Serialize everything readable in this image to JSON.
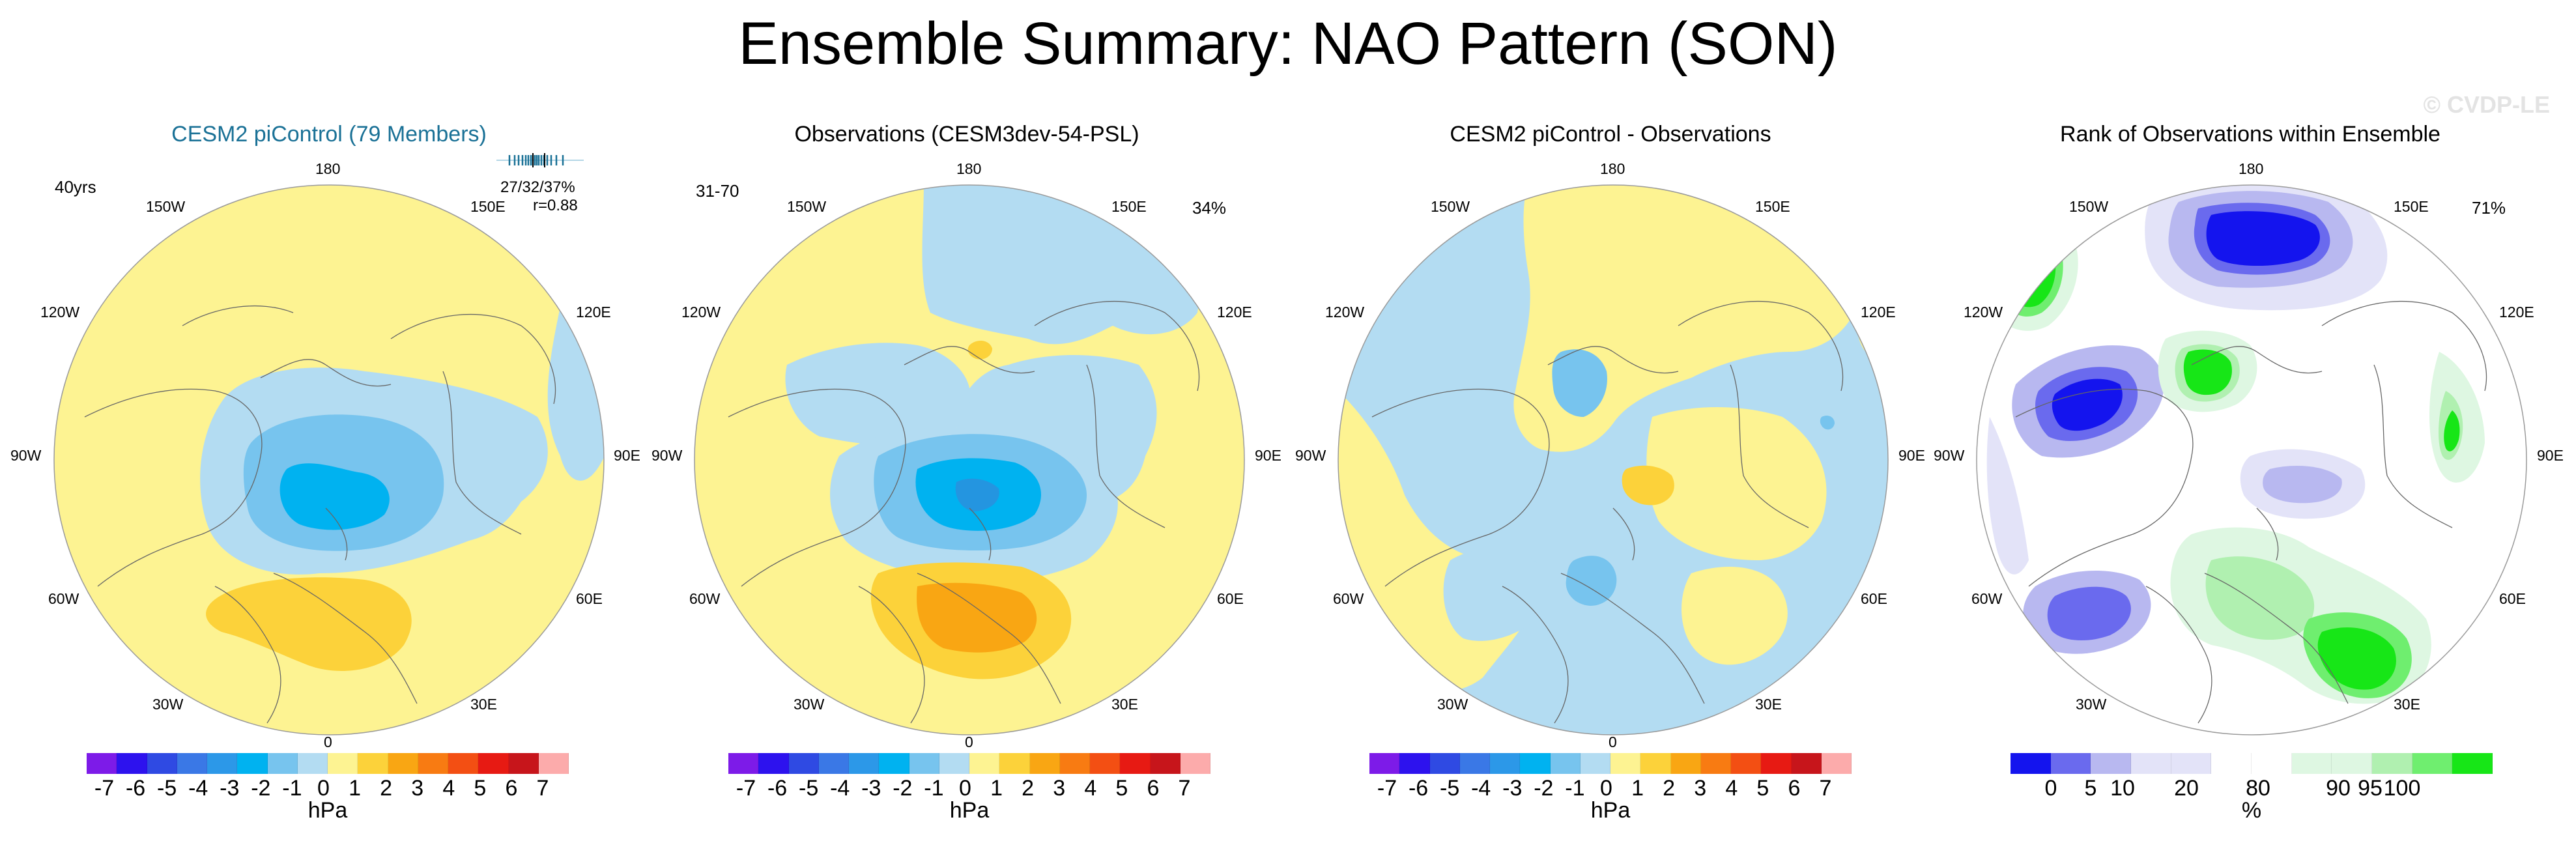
{
  "title": "Ensemble Summary: NAO Pattern (SON)",
  "watermark": "© CVDP-LE",
  "colors": {
    "title_blue": "#1a7196",
    "neg_light": "#b3dcf2",
    "neg_mid": "#77c4ee",
    "neg_strong": "#00b2f0",
    "neg_core": "#2495e0",
    "pos_light": "#fdf392",
    "pos_mid": "#fcd23a",
    "pos_strong": "#f9a613",
    "rank_dark_blue": "#1414ee",
    "rank_mid_blue": "#6a6aee",
    "rank_light_blue": "#b8b8f0",
    "rank_pale_blue": "#e3e3f8",
    "rank_pale_green": "#def7e2",
    "rank_light_green": "#b0f0b0",
    "rank_mid_green": "#6fee6f",
    "rank_green": "#17e617"
  },
  "lon_labels": {
    "top": "180",
    "bottom": "0",
    "upper_left": "150W",
    "upper_right": "150E",
    "mid_upper_left": "120W",
    "mid_upper_right": "120E",
    "left": "90W",
    "right": "90E",
    "mid_lower_left": "60W",
    "mid_lower_right": "60E",
    "lower_left": "30W",
    "lower_right": "30E"
  },
  "panels": [
    {
      "title": "CESM2 piControl (79 Members)",
      "corner_left": "40yrs",
      "stat_line1": "27/32/37%",
      "stat_line2": "r=0.88",
      "colorbar": {
        "colors": [
          "#7d1be8",
          "#2d12ee",
          "#2f4ae3",
          "#3a78e6",
          "#2c98e8",
          "#00b2f0",
          "#77c4ee",
          "#b3dcf2",
          "#fdf392",
          "#fcd23a",
          "#f9a613",
          "#f87b12",
          "#f34f13",
          "#e71a13",
          "#c7151b",
          "#fcabab"
        ],
        "ticks": [
          "-7",
          "-6",
          "-5",
          "-4",
          "-3",
          "-2",
          "-1",
          "0",
          "1",
          "2",
          "3",
          "4",
          "5",
          "6",
          "7"
        ],
        "unit": "hPa"
      }
    },
    {
      "title": "Observations (CESM3dev-54-PSL)",
      "corner_left": "31-70",
      "corner_right": "34%",
      "colorbar": {
        "colors": [
          "#7d1be8",
          "#2d12ee",
          "#2f4ae3",
          "#3a78e6",
          "#2c98e8",
          "#00b2f0",
          "#77c4ee",
          "#b3dcf2",
          "#fdf392",
          "#fcd23a",
          "#f9a613",
          "#f87b12",
          "#f34f13",
          "#e71a13",
          "#c7151b",
          "#fcabab"
        ],
        "ticks": [
          "-7",
          "-6",
          "-5",
          "-4",
          "-3",
          "-2",
          "-1",
          "0",
          "1",
          "2",
          "3",
          "4",
          "5",
          "6",
          "7"
        ],
        "unit": "hPa"
      }
    },
    {
      "title": "CESM2 piControl - Observations",
      "colorbar": {
        "colors": [
          "#7d1be8",
          "#2d12ee",
          "#2f4ae3",
          "#3a78e6",
          "#2c98e8",
          "#00b2f0",
          "#77c4ee",
          "#b3dcf2",
          "#fdf392",
          "#fcd23a",
          "#f9a613",
          "#f87b12",
          "#f34f13",
          "#e71a13",
          "#c7151b",
          "#fcabab"
        ],
        "ticks": [
          "-7",
          "-6",
          "-5",
          "-4",
          "-3",
          "-2",
          "-1",
          "0",
          "1",
          "2",
          "3",
          "4",
          "5",
          "6",
          "7"
        ],
        "unit": "hPa"
      }
    },
    {
      "title": "Rank of Observations within Ensemble",
      "corner_right": "71%",
      "colorbar": {
        "colors": [
          "#1414ee",
          "#6a6aee",
          "#b8b8f0",
          "#e3e3f8",
          "#e3e3f8",
          "#ffffff",
          "#ffffff",
          "#def7e2",
          "#def7e2",
          "#b0f0b0",
          "#6fee6f",
          "#17e617"
        ],
        "ticks": [
          "0",
          "5",
          "10",
          "20",
          "80",
          "90",
          "95",
          "100"
        ],
        "unit": "%"
      }
    }
  ]
}
